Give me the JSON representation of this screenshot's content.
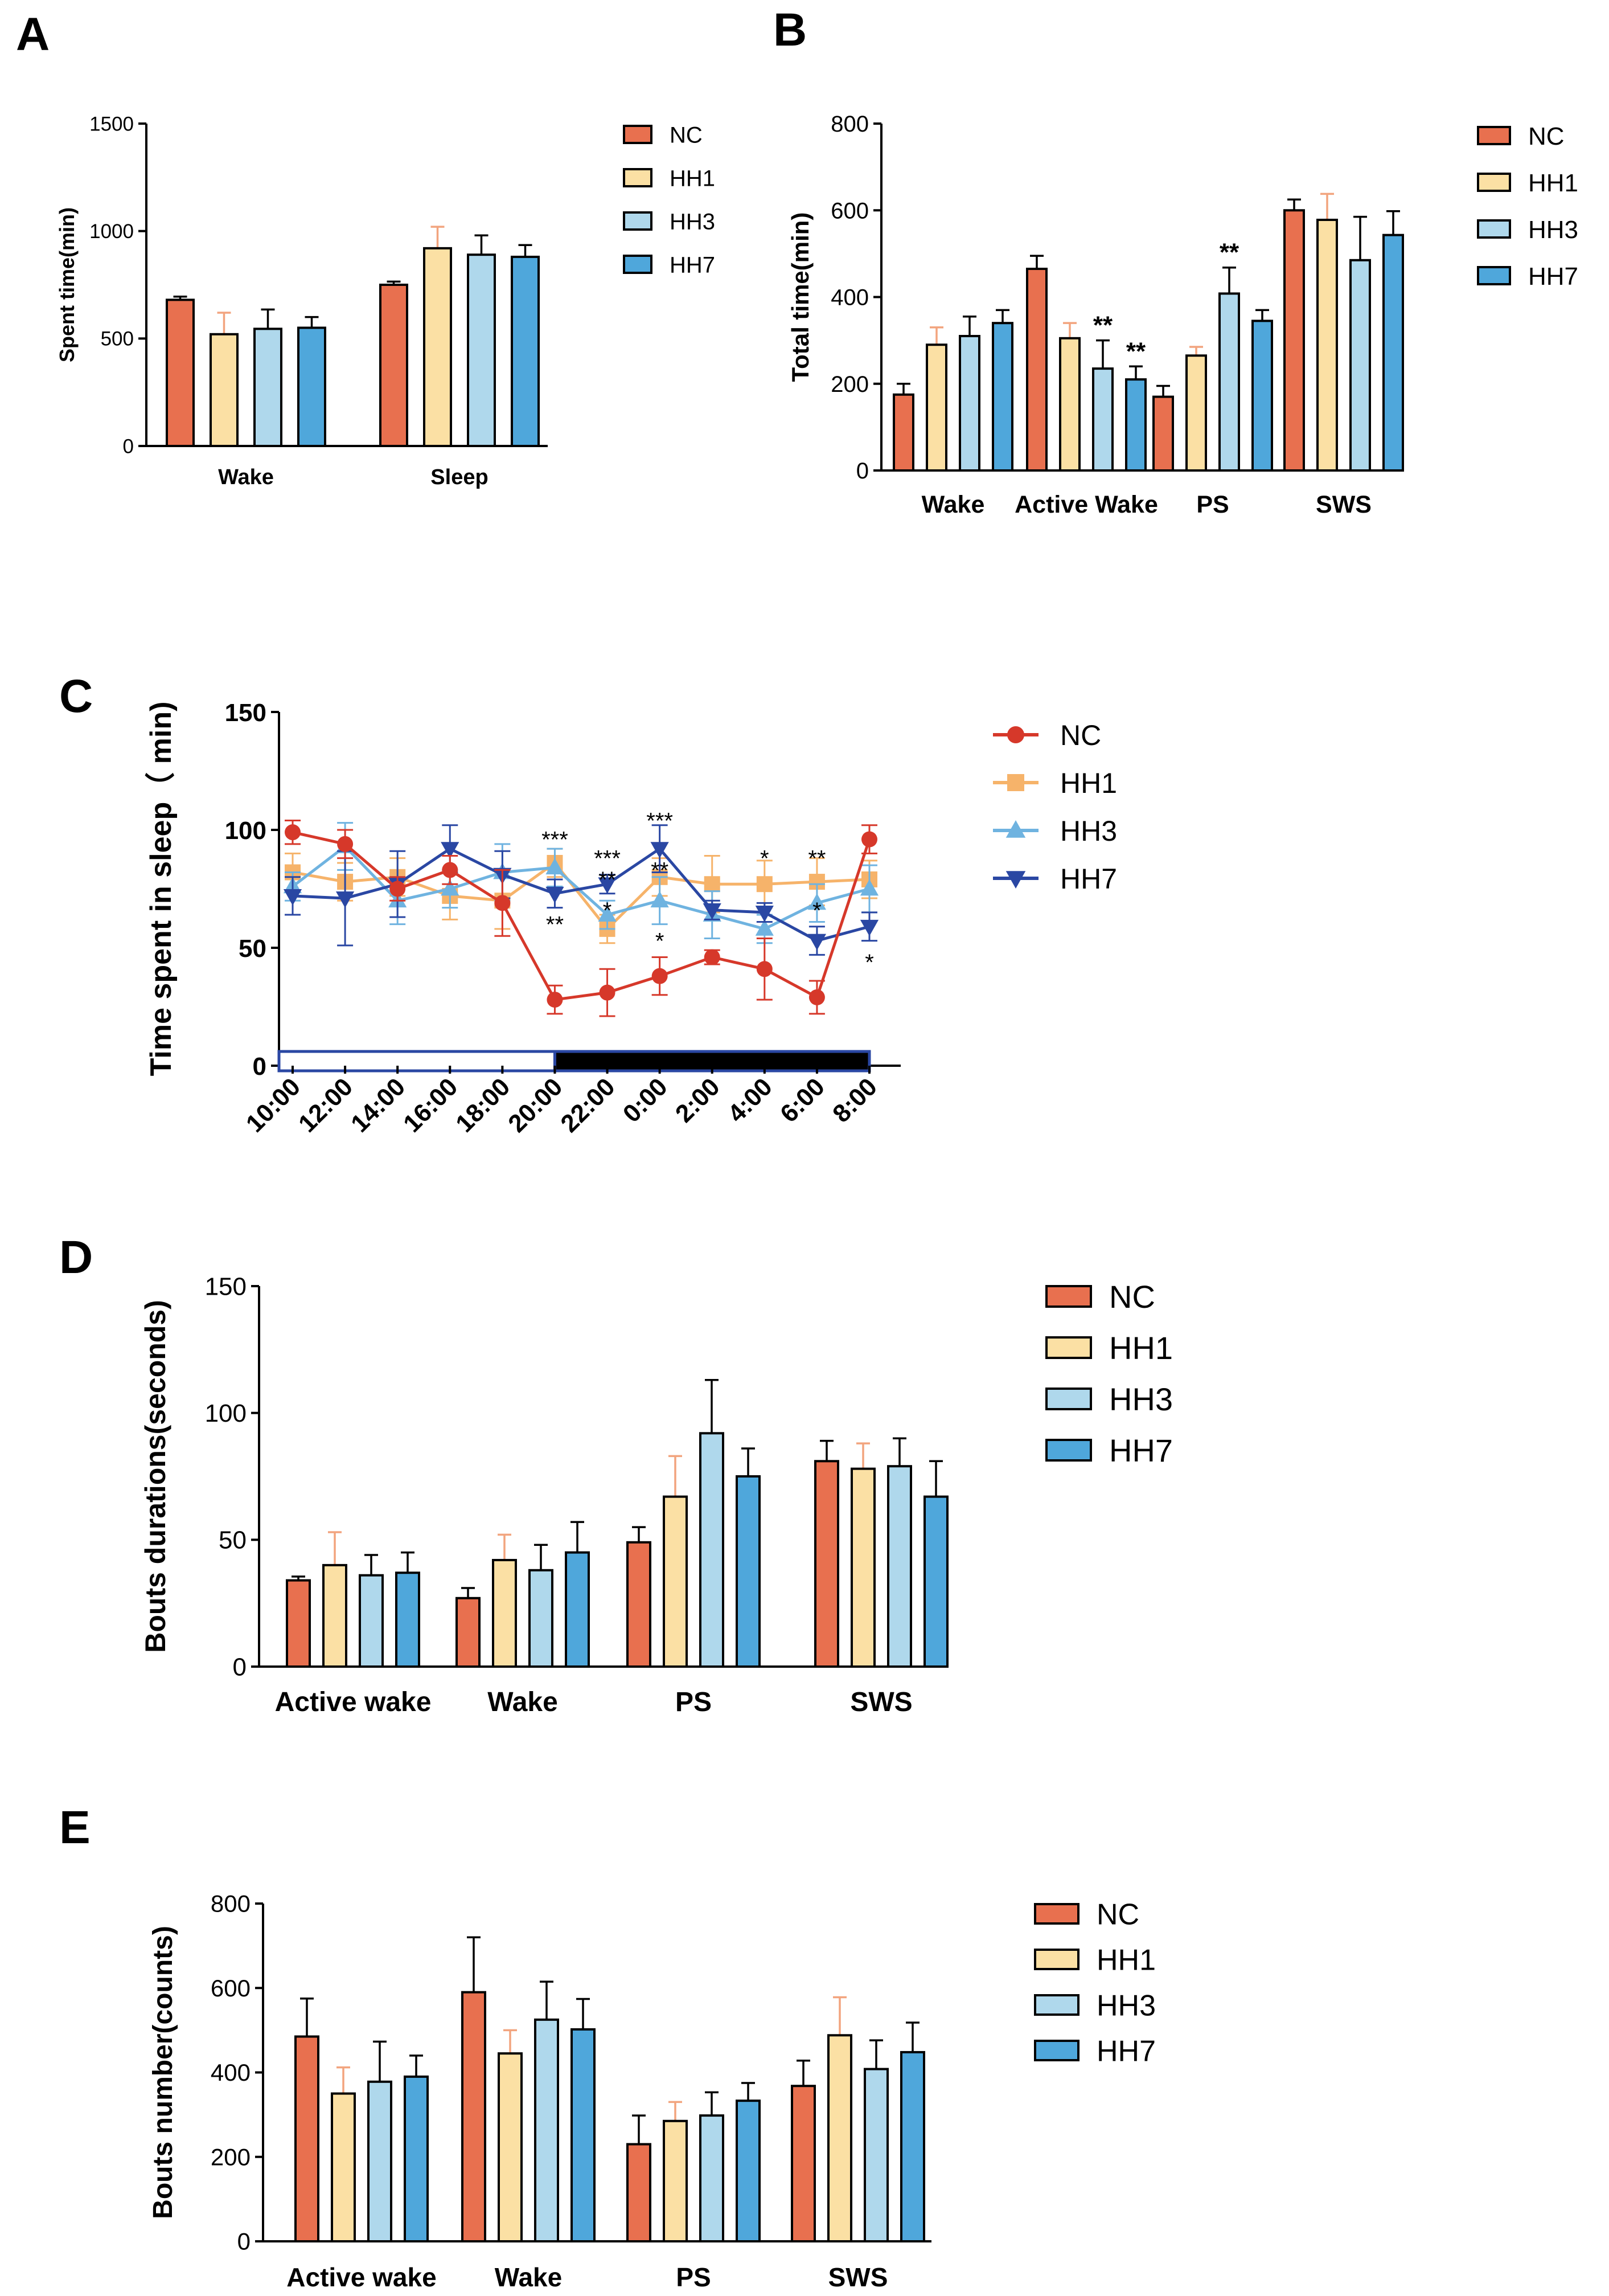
{
  "figure": {
    "panels": [
      {
        "letter": "A"
      },
      {
        "letter": "B"
      },
      {
        "letter": "C"
      },
      {
        "letter": "D"
      },
      {
        "letter": "E"
      }
    ]
  },
  "colors": {
    "NC": "#E8704F",
    "HH1": "#FBE0A4",
    "HH3": "#AFD8EC",
    "HH7": "#4FA7DB",
    "NC_line": "#D6382A",
    "HH1_line": "#F6B36A",
    "HH3_line": "#6FB3E0",
    "HH7_line": "#2A47A3",
    "HH1_err": "#F2A47E",
    "axis": "#000000",
    "dark_bar": "#000000",
    "light_bar_border": "#2A47A3"
  },
  "chart_data": [
    {
      "id": "A",
      "type": "bar",
      "ylabel": "Spent time(min)",
      "xlabel": "",
      "ylim": [
        0,
        1500
      ],
      "yticks": [
        "0",
        "500",
        "1000",
        "1500"
      ],
      "categories": [
        "Wake",
        "Sleep"
      ],
      "series": [
        {
          "name": "NC",
          "values": [
            680,
            750
          ],
          "errors": [
            15,
            15
          ]
        },
        {
          "name": "HH1",
          "values": [
            520,
            920
          ],
          "errors": [
            100,
            100
          ]
        },
        {
          "name": "HH3",
          "values": [
            545,
            890
          ],
          "errors": [
            90,
            90
          ]
        },
        {
          "name": "HH7",
          "values": [
            550,
            880
          ],
          "errors": [
            50,
            55
          ]
        }
      ],
      "annotations": [],
      "legend": [
        "NC",
        "HH1",
        "HH3",
        "HH7"
      ],
      "legend_position": "right"
    },
    {
      "id": "B",
      "type": "bar",
      "ylabel": "Total time(min)",
      "xlabel": "",
      "ylim": [
        0,
        800
      ],
      "yticks": [
        "0",
        "200",
        "400",
        "600",
        "800"
      ],
      "categories": [
        "Wake",
        "Active Wake",
        "PS",
        "SWS"
      ],
      "series": [
        {
          "name": "NC",
          "values": [
            175,
            465,
            170,
            600
          ],
          "errors": [
            25,
            30,
            25,
            25
          ]
        },
        {
          "name": "HH1",
          "values": [
            290,
            305,
            265,
            578
          ],
          "errors": [
            40,
            35,
            20,
            60
          ]
        },
        {
          "name": "HH3",
          "values": [
            310,
            235,
            408,
            485
          ],
          "errors": [
            45,
            65,
            60,
            100
          ]
        },
        {
          "name": "HH7",
          "values": [
            340,
            210,
            345,
            543
          ],
          "errors": [
            30,
            30,
            25,
            55
          ]
        }
      ],
      "annotations": [
        {
          "category": "Active Wake",
          "series": "HH3",
          "text": "**"
        },
        {
          "category": "Active Wake",
          "series": "HH7",
          "text": "**"
        },
        {
          "category": "PS",
          "series": "HH3",
          "text": "**"
        }
      ],
      "legend": [
        "NC",
        "HH1",
        "HH3",
        "HH7"
      ],
      "legend_position": "right"
    },
    {
      "id": "C",
      "type": "line",
      "ylabel": "Time spent in sleep（ min)",
      "xlabel": "",
      "ylim": [
        0,
        150
      ],
      "yticks": [
        "0",
        "50",
        "100",
        "150"
      ],
      "x": [
        "10:00",
        "12:00",
        "14:00",
        "16:00",
        "18:00",
        "20:00",
        "22:00",
        "0:00",
        "2:00",
        "4:00",
        "6:00",
        "8:00"
      ],
      "series": [
        {
          "name": "NC",
          "marker": "circle",
          "values": [
            99,
            94,
            75,
            83,
            69,
            28,
            31,
            38,
            46,
            41,
            29,
            96
          ],
          "errors": [
            5,
            6,
            5,
            6,
            14,
            6,
            10,
            8,
            3,
            13,
            7,
            6
          ]
        },
        {
          "name": "HH1",
          "marker": "square",
          "values": [
            82,
            78,
            80,
            72,
            70,
            86,
            58,
            80,
            77,
            77,
            78,
            79
          ],
          "errors": [
            8,
            8,
            8,
            10,
            12,
            6,
            6,
            8,
            12,
            10,
            10,
            8
          ]
        },
        {
          "name": "HH3",
          "marker": "triangle",
          "values": [
            76,
            93,
            70,
            75,
            82,
            84,
            64,
            70,
            64,
            58,
            69,
            75
          ],
          "errors": [
            6,
            10,
            10,
            8,
            12,
            8,
            6,
            10,
            10,
            6,
            8,
            10
          ]
        },
        {
          "name": "HH7",
          "marker": "tri-down",
          "values": [
            72,
            71,
            77,
            92,
            81,
            73,
            77,
            92,
            66,
            65,
            53,
            59
          ],
          "errors": [
            8,
            20,
            14,
            10,
            10,
            6,
            4,
            10,
            4,
            4,
            6,
            6
          ]
        }
      ],
      "light_phase": {
        "from": "10:00",
        "to": "20:00"
      },
      "dark_phase": {
        "from": "20:00",
        "to": "8:00"
      },
      "annotations": [
        {
          "x": "20:00",
          "y": 96,
          "text": "***"
        },
        {
          "x": "20:00",
          "y": 60,
          "text": "**"
        },
        {
          "x": "22:00",
          "y": 88,
          "text": "***"
        },
        {
          "x": "22:00",
          "y": 79,
          "text": "**"
        },
        {
          "x": "22:00",
          "y": 66,
          "text": "*"
        },
        {
          "x": "0:00",
          "y": 104,
          "text": "***"
        },
        {
          "x": "0:00",
          "y": 83,
          "text": "**"
        },
        {
          "x": "0:00",
          "y": 53,
          "text": "*"
        },
        {
          "x": "4:00",
          "y": 88,
          "text": "*"
        },
        {
          "x": "6:00",
          "y": 88,
          "text": "**"
        },
        {
          "x": "6:00",
          "y": 66,
          "text": "*"
        },
        {
          "x": "8:00",
          "y": 44,
          "text": "*"
        }
      ],
      "legend": [
        "NC",
        "HH1",
        "HH3",
        "HH7"
      ],
      "legend_position": "right"
    },
    {
      "id": "D",
      "type": "bar",
      "ylabel": "Bouts durations(seconds)",
      "xlabel": "",
      "ylim": [
        0,
        150
      ],
      "yticks": [
        "0",
        "50",
        "100",
        "150"
      ],
      "categories": [
        "Active wake",
        "Wake",
        "PS",
        "SWS"
      ],
      "series": [
        {
          "name": "NC",
          "values": [
            34,
            27,
            49,
            81
          ],
          "errors": [
            1.5,
            4,
            6,
            8
          ]
        },
        {
          "name": "HH1",
          "values": [
            40,
            42,
            67,
            78
          ],
          "errors": [
            13,
            10,
            16,
            10
          ]
        },
        {
          "name": "HH3",
          "values": [
            36,
            38,
            92,
            79
          ],
          "errors": [
            8,
            10,
            21,
            11
          ]
        },
        {
          "name": "HH7",
          "values": [
            37,
            45,
            75,
            67
          ],
          "errors": [
            8,
            12,
            11,
            14
          ]
        }
      ],
      "annotations": [],
      "legend": [
        "NC",
        "HH1",
        "HH3",
        "HH7"
      ],
      "legend_position": "right"
    },
    {
      "id": "E",
      "type": "bar",
      "ylabel": "Bouts number(counts)",
      "xlabel": "",
      "ylim": [
        0,
        800
      ],
      "yticks": [
        "0",
        "200",
        "400",
        "600",
        "800"
      ],
      "categories": [
        "Active wake",
        "Wake",
        "PS",
        "SWS"
      ],
      "series": [
        {
          "name": "NC",
          "values": [
            485,
            590,
            230,
            368
          ],
          "errors": [
            90,
            130,
            68,
            60
          ]
        },
        {
          "name": "HH1",
          "values": [
            350,
            445,
            285,
            488
          ],
          "errors": [
            62,
            55,
            45,
            90
          ]
        },
        {
          "name": "HH3",
          "values": [
            378,
            525,
            298,
            408
          ],
          "errors": [
            95,
            90,
            55,
            68
          ]
        },
        {
          "name": "HH7",
          "values": [
            390,
            502,
            333,
            448
          ],
          "errors": [
            50,
            72,
            42,
            70
          ]
        }
      ],
      "annotations": [],
      "legend": [
        "NC",
        "HH1",
        "HH3",
        "HH7"
      ],
      "legend_position": "right"
    }
  ]
}
